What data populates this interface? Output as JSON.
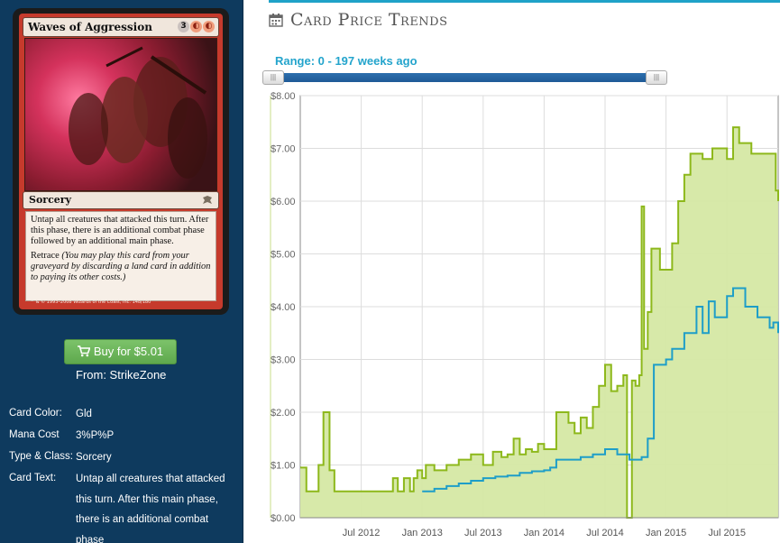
{
  "card": {
    "name": "Waves of Aggression",
    "mana_symbols": [
      "3",
      "R/W",
      "R/W"
    ],
    "type_line": "Sorcery",
    "rules_text": "Untap all creatures that attacked this turn. After this phase, there is an additional combat phase followed by an additional main phase.",
    "retrace_label": "Retrace",
    "retrace_text": "(You may play this card from your graveyard by discarding a land card in addition to paying its other costs.)",
    "footer": "™ & © 1993–2008 Wizards of the Coast, Inc. 148/180"
  },
  "buy": {
    "label": "Buy for $5.01",
    "from": "From: StrikeZone"
  },
  "info": [
    {
      "label": "Card Color:",
      "value": "Gld"
    },
    {
      "label": "Mana Cost",
      "value": "3%P%P"
    },
    {
      "label": "Type & Class:",
      "value": "Sorcery"
    },
    {
      "label": "Card Text:",
      "value": "Untap all creatures that attacked this turn. After this main phase, there is an additional combat phase"
    }
  ],
  "header": {
    "title": "Card Price Trends",
    "icon": "calendar-icon"
  },
  "range": {
    "label": "Range: 0 - 197 weeks ago"
  },
  "colors": {
    "sidebar": "#0e3a5e",
    "accent": "#1fa2c8",
    "buy": "#6bb55a",
    "series_retail": "#8db81b",
    "series_buylist": "#1e9ec8",
    "area_fill": "#d5e8a4"
  },
  "chart_data": {
    "type": "line",
    "x_tick_labels": [
      "Jul 2012",
      "Jan 2013",
      "Jul 2013",
      "Jan 2014",
      "Jul 2014",
      "Jan 2015",
      "Jul 2015"
    ],
    "y_tick_labels": [
      "$0.00",
      "$1.00",
      "$2.00",
      "$3.00",
      "$4.00",
      "$5.00",
      "$6.00",
      "$7.00",
      "$8.00"
    ],
    "xlim": [
      2012.0,
      2015.92
    ],
    "ylim": [
      0,
      8
    ],
    "grid": true,
    "series": [
      {
        "style": "area",
        "x": [
          2012.0,
          2012.05,
          2012.15,
          2012.19,
          2012.21,
          2012.24,
          2012.28,
          2012.4,
          2012.6,
          2012.75,
          2012.76,
          2012.8,
          2012.85,
          2012.9,
          2012.93,
          2012.96,
          2013.0,
          2013.03,
          2013.1,
          2013.2,
          2013.3,
          2013.4,
          2013.5,
          2013.58,
          2013.65,
          2013.7,
          2013.75,
          2013.8,
          2013.85,
          2013.9,
          2013.95,
          2014.0,
          2014.1,
          2014.2,
          2014.25,
          2014.3,
          2014.35,
          2014.4,
          2014.45,
          2014.5,
          2014.55,
          2014.6,
          2014.65,
          2014.68,
          2014.72,
          2014.75,
          2014.78,
          2014.8,
          2014.82,
          2014.85,
          2014.88,
          2014.95,
          2015.0,
          2015.05,
          2015.1,
          2015.15,
          2015.2,
          2015.3,
          2015.38,
          2015.45,
          2015.5,
          2015.55,
          2015.6,
          2015.7,
          2015.8,
          2015.88,
          2015.9,
          2015.92
        ],
        "y": [
          0.95,
          0.5,
          1.0,
          2.0,
          2.0,
          0.9,
          0.5,
          0.5,
          0.5,
          0.5,
          0.75,
          0.5,
          0.75,
          0.5,
          0.75,
          0.9,
          0.75,
          1.0,
          0.9,
          1.0,
          1.1,
          1.2,
          1.0,
          1.25,
          1.15,
          1.2,
          1.5,
          1.2,
          1.3,
          1.25,
          1.4,
          1.3,
          2.0,
          1.8,
          1.6,
          1.9,
          1.7,
          2.1,
          2.5,
          2.9,
          2.4,
          2.5,
          2.7,
          0.0,
          2.6,
          2.5,
          2.7,
          5.9,
          3.2,
          3.9,
          5.1,
          4.7,
          4.7,
          5.2,
          6.0,
          6.5,
          6.9,
          6.8,
          7.0,
          7.0,
          6.8,
          7.4,
          7.1,
          6.9,
          6.9,
          6.9,
          6.2,
          6.0
        ]
      },
      {
        "style": "line",
        "x": [
          2013.0,
          2013.1,
          2013.2,
          2013.3,
          2013.4,
          2013.5,
          2013.6,
          2013.7,
          2013.8,
          2013.9,
          2014.0,
          2014.05,
          2014.1,
          2014.2,
          2014.3,
          2014.4,
          2014.5,
          2014.6,
          2014.7,
          2014.75,
          2014.8,
          2014.85,
          2014.9,
          2015.0,
          2015.05,
          2015.15,
          2015.25,
          2015.3,
          2015.35,
          2015.4,
          2015.5,
          2015.55,
          2015.65,
          2015.75,
          2015.85,
          2015.88,
          2015.92
        ],
        "y": [
          0.5,
          0.55,
          0.6,
          0.65,
          0.7,
          0.75,
          0.78,
          0.8,
          0.85,
          0.88,
          0.9,
          0.95,
          1.1,
          1.1,
          1.15,
          1.2,
          1.3,
          1.2,
          1.1,
          1.1,
          1.15,
          1.5,
          2.9,
          3.0,
          3.2,
          3.5,
          4.0,
          3.5,
          4.1,
          3.8,
          4.2,
          4.35,
          4.0,
          3.8,
          3.6,
          3.7,
          3.5
        ]
      }
    ]
  }
}
